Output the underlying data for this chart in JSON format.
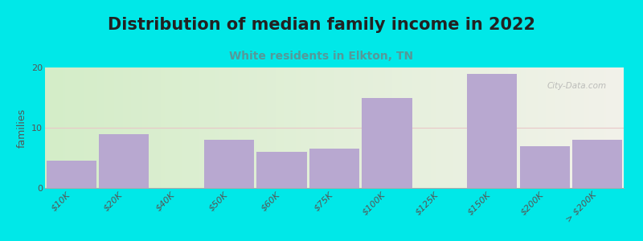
{
  "title": "Distribution of median family income in 2022",
  "subtitle": "White residents in Elkton, TN",
  "ylabel": "families",
  "categories": [
    "$10K",
    "$20K",
    "$40K",
    "$50K",
    "$60K",
    "$75K",
    "$100K",
    "$125K",
    "$150K",
    "$200K",
    "> $200K"
  ],
  "values": [
    4.5,
    9,
    0,
    8,
    6,
    6.5,
    15,
    0,
    19,
    7,
    8
  ],
  "bar_color": "#b8a8d0",
  "bg_color_left": "#d4edc8",
  "bg_color_right": "#f2f2ea",
  "outer_bg": "#00e8e8",
  "title_color": "#222222",
  "subtitle_color": "#559999",
  "ylabel_color": "#555555",
  "tick_color": "#555555",
  "ylim": [
    0,
    20
  ],
  "yticks": [
    0,
    10,
    20
  ],
  "grid_color": "#e8c8c8",
  "watermark": "City-Data.com",
  "title_fontsize": 15,
  "subtitle_fontsize": 10,
  "ylabel_fontsize": 9,
  "tick_fontsize": 8
}
